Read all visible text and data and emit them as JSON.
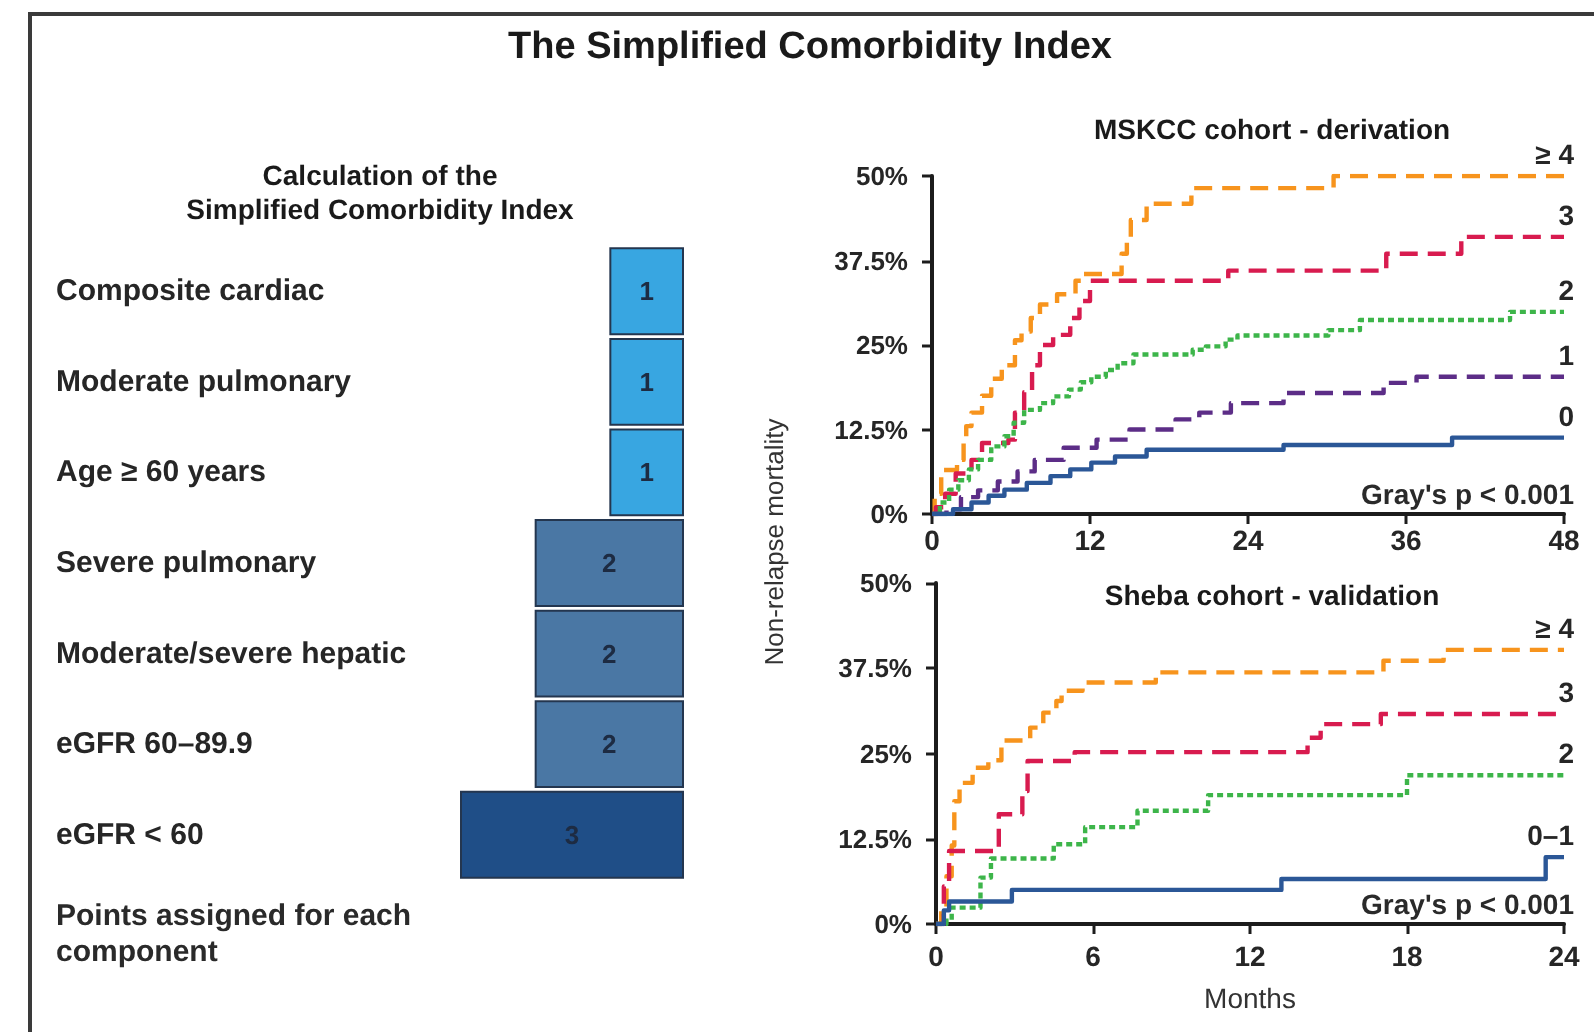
{
  "chart_data": [
    {
      "type": "bar",
      "title": "The Simplified Comorbidity Index",
      "subtitle": "Calculation of the\nSimplified Comorbidity Index",
      "orientation": "horizontal",
      "categories": [
        "Composite cardiac",
        "Moderate pulmonary",
        "Age ≥ 60 years",
        "Severe pulmonary",
        "Moderate/severe hepatic",
        "eGFR 60–89.9",
        "eGFR < 60"
      ],
      "values": [
        1,
        1,
        1,
        2,
        2,
        2,
        3
      ],
      "colors": [
        "#38a6e1",
        "#38a6e1",
        "#38a6e1",
        "#4a77a4",
        "#4a77a4",
        "#4a77a4",
        "#1f4e87"
      ],
      "xlim": [
        3,
        0
      ],
      "data_labels": true,
      "tick_labels": "y",
      "annotations": [
        "Points assigned for each component"
      ]
    },
    {
      "type": "step",
      "title": "MSKCC cohort - derivation",
      "ylabel": "Non-relapse mortality",
      "xlim": [
        0,
        48
      ],
      "xticks": [
        0,
        12,
        24,
        36,
        48
      ],
      "ylim": [
        0,
        50
      ],
      "yticks": [
        {
          "value": 0,
          "label": "0%"
        },
        {
          "value": 12.5,
          "label": "12.5%"
        },
        {
          "value": 25,
          "label": "25%"
        },
        {
          "value": 37.5,
          "label": "37.5%"
        },
        {
          "value": 50,
          "label": "50%"
        }
      ],
      "annotations": [
        "Gray's p < 0.001"
      ],
      "series": [
        {
          "name": "≥ 4",
          "color": "#f7941d",
          "line_style": "dashed",
          "x": [
            0,
            0.2,
            0.7,
            1.9,
            2.4,
            2.6,
            3,
            3.8,
            4.5,
            5.3,
            6.3,
            6.8,
            7.5,
            8.2,
            9.5,
            10.9,
            11.5,
            14.4,
            14.8,
            15.1,
            16.3,
            19.7,
            30.5,
            48
          ],
          "values": [
            0,
            3,
            6.5,
            8,
            10.5,
            13,
            15,
            17.5,
            20,
            22,
            25.7,
            27,
            29,
            31,
            32.5,
            34.5,
            35.5,
            38.5,
            41,
            43.5,
            45.9,
            48.2,
            50,
            50
          ]
        },
        {
          "name": "3",
          "color": "#d81b4f",
          "line_style": "dashed",
          "x": [
            0,
            0.3,
            1,
            1.8,
            3,
            3.8,
            5.8,
            6.3,
            7,
            7.6,
            8.2,
            9.2,
            10.5,
            11.2,
            12,
            22.5,
            34.5,
            40.2,
            48
          ],
          "values": [
            0,
            1,
            3,
            6,
            8,
            10.5,
            11,
            15,
            18,
            22,
            25,
            26.5,
            29,
            31.5,
            34.5,
            36,
            38.5,
            41,
            41
          ]
        },
        {
          "name": "2",
          "color": "#3db54a",
          "line_style": "dotted",
          "x": [
            0,
            0.6,
            1.3,
            2,
            2.8,
            3.5,
            4.5,
            5.5,
            6.2,
            7,
            8.2,
            9.2,
            10.4,
            11.3,
            12.1,
            13.2,
            14.1,
            15.3,
            19.8,
            20.8,
            22.3,
            23.2,
            30.1,
            32.5,
            43.9,
            48
          ],
          "values": [
            0,
            1.7,
            3.6,
            5,
            6.6,
            8,
            10,
            11.5,
            13.5,
            15.4,
            16.4,
            17.4,
            18.4,
            19.5,
            20.3,
            21.3,
            22.3,
            23.6,
            24.3,
            24.8,
            25.8,
            26.4,
            27.2,
            28.7,
            29.9,
            29.9
          ]
        },
        {
          "name": "1",
          "color": "#5c2d87",
          "line_style": "dashed",
          "x": [
            0,
            1.1,
            2.2,
            3.5,
            5,
            6.5,
            7.8,
            10,
            12.5,
            15,
            18.5,
            20.3,
            22.7,
            26.7,
            34.3,
            36.8,
            48
          ],
          "values": [
            0,
            0.7,
            2.5,
            3.5,
            4.8,
            6.3,
            8,
            9.8,
            11,
            12.5,
            14,
            15,
            16.4,
            17.9,
            19.4,
            20.3,
            20.3
          ]
        },
        {
          "name": "0",
          "color": "#2b5797",
          "line_style": "solid",
          "x": [
            0,
            1.6,
            3,
            4.3,
            5.5,
            7.2,
            9,
            10.5,
            12.1,
            13.9,
            16.3,
            26.7,
            39.5,
            48
          ],
          "values": [
            0,
            0.7,
            1.7,
            2.7,
            3.6,
            4.6,
            5.6,
            6.6,
            7.6,
            8.5,
            9.5,
            10.2,
            11.3,
            11.3
          ]
        }
      ]
    },
    {
      "type": "step",
      "title": "Sheba cohort - validation",
      "xlabel": "Months",
      "xlim": [
        0,
        24
      ],
      "xticks": [
        0,
        6,
        12,
        18,
        24
      ],
      "ylim": [
        0,
        50
      ],
      "yticks": [
        {
          "value": 0,
          "label": "0%"
        },
        {
          "value": 12.5,
          "label": "12.5%"
        },
        {
          "value": 25,
          "label": "25%"
        },
        {
          "value": 37.5,
          "label": "37.5%"
        },
        {
          "value": 50,
          "label": "50%"
        }
      ],
      "annotations": [
        "Gray's p < 0.001"
      ],
      "series": [
        {
          "name": "≥ 4",
          "color": "#f7941d",
          "line_style": "dashed",
          "x": [
            0,
            0.2,
            0.4,
            0.6,
            0.7,
            0.9,
            1.4,
            2,
            2.5,
            3.6,
            4.1,
            4.6,
            4.8,
            5.6,
            8.4,
            17.1,
            19.4,
            24
          ],
          "values": [
            0,
            2.5,
            7,
            11.5,
            18,
            20.7,
            22.9,
            24,
            26.9,
            28.8,
            31,
            32.7,
            34.2,
            35.4,
            36.9,
            38.6,
            40.2,
            40.2
          ]
        },
        {
          "name": "3",
          "color": "#d81b4f",
          "line_style": "dashed",
          "x": [
            0,
            0.3,
            0.5,
            2.4,
            3.3,
            3.5,
            5.3,
            14.2,
            14.7,
            17,
            24
          ],
          "values": [
            0,
            5.5,
            10.7,
            16.1,
            19.5,
            23.9,
            25.2,
            27.3,
            29.3,
            30.8,
            30.8
          ]
        },
        {
          "name": "2",
          "color": "#3db54a",
          "line_style": "dotted",
          "x": [
            0,
            0.4,
            0.6,
            1.7,
            2.1,
            4.5,
            5.7,
            7.7,
            10.4,
            18,
            24
          ],
          "values": [
            0,
            0.5,
            2.4,
            6.8,
            9.6,
            11.7,
            14.2,
            16.6,
            18.9,
            21.8,
            21.8
          ]
        },
        {
          "name": "0–1",
          "color": "#2b5797",
          "line_style": "solid",
          "x": [
            0,
            0.3,
            0.5,
            2.9,
            13.2,
            23.3,
            24
          ],
          "values": [
            0,
            2,
            3.3,
            5,
            6.6,
            9.8,
            9.8
          ]
        }
      ]
    }
  ]
}
